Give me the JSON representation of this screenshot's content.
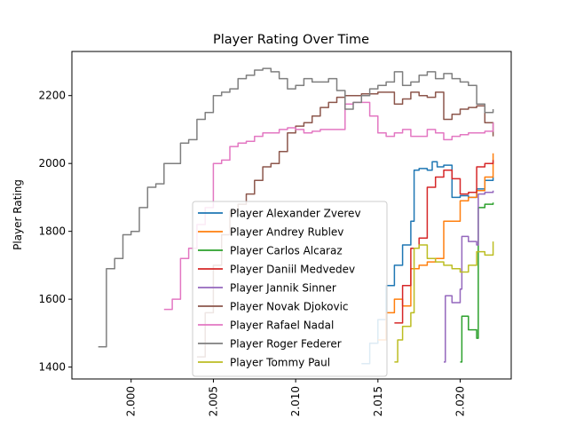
{
  "chart_data": {
    "type": "line",
    "title": "Player Rating Over Time",
    "xlabel": "",
    "ylabel": "Player Rating",
    "xlim": [
      1.9964,
      2.0231
    ],
    "ylim": [
      1365,
      2330
    ],
    "x_ticks": [
      {
        "value": 2.0,
        "label": "2.000"
      },
      {
        "value": 2.005,
        "label": "2.005"
      },
      {
        "value": 2.01,
        "label": "2.010"
      },
      {
        "value": 2.015,
        "label": "2.015"
      },
      {
        "value": 2.02,
        "label": "2.020"
      }
    ],
    "y_ticks": [
      {
        "value": 1400,
        "label": "1400"
      },
      {
        "value": 1600,
        "label": "1600"
      },
      {
        "value": 1800,
        "label": "1800"
      },
      {
        "value": 2000,
        "label": "2000"
      },
      {
        "value": 2200,
        "label": "2200"
      }
    ],
    "grid": false,
    "legend_position": "lower-center",
    "series": [
      {
        "name": "Player Alexander Zverev",
        "color": "#1f77b4",
        "x": [
          2.014,
          2.0145,
          2.015,
          2.0155,
          2.016,
          2.0165,
          2.017,
          2.0172,
          2.0175,
          2.018,
          2.0183,
          2.0186,
          2.019,
          2.0195,
          2.02,
          2.0205,
          2.021,
          2.0215,
          2.022
        ],
        "y": [
          1410,
          1470,
          1540,
          1640,
          1700,
          1760,
          1830,
          1980,
          1985,
          1980,
          2005,
          1990,
          1995,
          1900,
          1905,
          1900,
          1925,
          1950,
          1960
        ]
      },
      {
        "name": "Player Andrey Rublev",
        "color": "#ff7f0e",
        "x": [
          2.015,
          2.0155,
          2.016,
          2.0165,
          2.017,
          2.0175,
          2.018,
          2.0185,
          2.019,
          2.0195,
          2.02,
          2.0205,
          2.021,
          2.0215,
          2.022
        ],
        "y": [
          1480,
          1560,
          1600,
          1580,
          1690,
          1700,
          1710,
          1720,
          1830,
          1830,
          1890,
          1900,
          1920,
          1960,
          2030
        ]
      },
      {
        "name": "Player Carlos Alcaraz",
        "color": "#2ca02c",
        "x": [
          2.02,
          2.0201,
          2.0205,
          2.021,
          2.0211,
          2.0215,
          2.022
        ],
        "y": [
          1415,
          1550,
          1510,
          1485,
          1870,
          1880,
          1885
        ]
      },
      {
        "name": "Player Daniil Medvedev",
        "color": "#d62728",
        "x": [
          2.016,
          2.0165,
          2.017,
          2.0175,
          2.018,
          2.0185,
          2.019,
          2.0195,
          2.02,
          2.0205,
          2.021,
          2.0215,
          2.022
        ],
        "y": [
          1530,
          1640,
          1750,
          1780,
          1930,
          1960,
          1980,
          1955,
          1910,
          1915,
          1990,
          2000,
          2010
        ]
      },
      {
        "name": "Player Jannik Sinner",
        "color": "#9467bd",
        "x": [
          2.019,
          2.0191,
          2.0195,
          2.02,
          2.0201,
          2.0205,
          2.021,
          2.0211,
          2.0215,
          2.022
        ],
        "y": [
          1415,
          1610,
          1590,
          1630,
          1785,
          1770,
          1760,
          1910,
          1915,
          1920
        ]
      },
      {
        "name": "Player Novak Djokovic",
        "color": "#8c564b",
        "x": [
          2.004,
          2.0045,
          2.005,
          2.0055,
          2.006,
          2.0065,
          2.007,
          2.0075,
          2.008,
          2.0085,
          2.009,
          2.0095,
          2.01,
          2.0105,
          2.011,
          2.0115,
          2.012,
          2.0125,
          2.013,
          2.0135,
          2.014,
          2.0145,
          2.015,
          2.0155,
          2.016,
          2.0165,
          2.017,
          2.0175,
          2.018,
          2.0185,
          2.019,
          2.0195,
          2.02,
          2.0205,
          2.021,
          2.0215,
          2.022
        ],
        "y": [
          1430,
          1560,
          1700,
          1790,
          1860,
          1880,
          1910,
          1950,
          1990,
          2000,
          2035,
          2090,
          2110,
          2120,
          2140,
          2165,
          2180,
          2195,
          2200,
          2200,
          2205,
          2205,
          2210,
          2210,
          2175,
          2190,
          2210,
          2200,
          2195,
          2210,
          2130,
          2145,
          2160,
          2165,
          2170,
          2120,
          2080
        ]
      },
      {
        "name": "Player Rafael Nadal",
        "color": "#e377c2",
        "x": [
          2.002,
          2.0025,
          2.003,
          2.0035,
          2.004,
          2.0045,
          2.005,
          2.0055,
          2.006,
          2.0065,
          2.007,
          2.0075,
          2.008,
          2.0085,
          2.009,
          2.0095,
          2.01,
          2.0105,
          2.011,
          2.0115,
          2.012,
          2.0125,
          2.013,
          2.0135,
          2.014,
          2.0145,
          2.015,
          2.0155,
          2.016,
          2.0165,
          2.017,
          2.0175,
          2.018,
          2.0185,
          2.019,
          2.0195,
          2.02,
          2.0205,
          2.021,
          2.0215,
          2.022
        ],
        "y": [
          1570,
          1600,
          1720,
          1750,
          1820,
          1870,
          2000,
          2010,
          2050,
          2060,
          2065,
          2080,
          2090,
          2090,
          2100,
          2105,
          2100,
          2090,
          2095,
          2100,
          2100,
          2100,
          2175,
          2180,
          2180,
          2140,
          2090,
          2080,
          2090,
          2100,
          2080,
          2080,
          2100,
          2090,
          2070,
          2080,
          2085,
          2090,
          2090,
          2095,
          2120
        ]
      },
      {
        "name": "Player Roger Federer",
        "color": "#7f7f7f",
        "x": [
          1.998,
          1.9985,
          1.999,
          1.9995,
          2.0,
          2.0005,
          2.001,
          2.0015,
          2.002,
          2.0025,
          2.003,
          2.0035,
          2.004,
          2.0045,
          2.005,
          2.0055,
          2.006,
          2.0065,
          2.007,
          2.0075,
          2.008,
          2.0085,
          2.009,
          2.0095,
          2.01,
          2.0105,
          2.011,
          2.0115,
          2.012,
          2.0125,
          2.013,
          2.0135,
          2.014,
          2.0145,
          2.015,
          2.0155,
          2.016,
          2.0165,
          2.017,
          2.0175,
          2.018,
          2.0185,
          2.019,
          2.0195,
          2.02,
          2.0205,
          2.021,
          2.0215,
          2.022
        ],
        "y": [
          1460,
          1690,
          1720,
          1790,
          1800,
          1870,
          1930,
          1940,
          2000,
          2000,
          2060,
          2070,
          2130,
          2150,
          2200,
          2210,
          2220,
          2250,
          2260,
          2275,
          2280,
          2270,
          2250,
          2220,
          2230,
          2250,
          2240,
          2240,
          2250,
          2215,
          2160,
          2180,
          2200,
          2220,
          2230,
          2240,
          2270,
          2230,
          2240,
          2260,
          2270,
          2250,
          2265,
          2250,
          2240,
          2230,
          2175,
          2150,
          2160
        ]
      },
      {
        "name": "Player Tommy Paul",
        "color": "#bcbd22",
        "x": [
          2.016,
          2.0162,
          2.0165,
          2.017,
          2.0172,
          2.0175,
          2.018,
          2.0185,
          2.019,
          2.0195,
          2.02,
          2.0205,
          2.021,
          2.0215,
          2.022
        ],
        "y": [
          1415,
          1480,
          1520,
          1560,
          1750,
          1760,
          1720,
          1710,
          1700,
          1690,
          1680,
          1700,
          1740,
          1730,
          1770
        ]
      }
    ]
  }
}
